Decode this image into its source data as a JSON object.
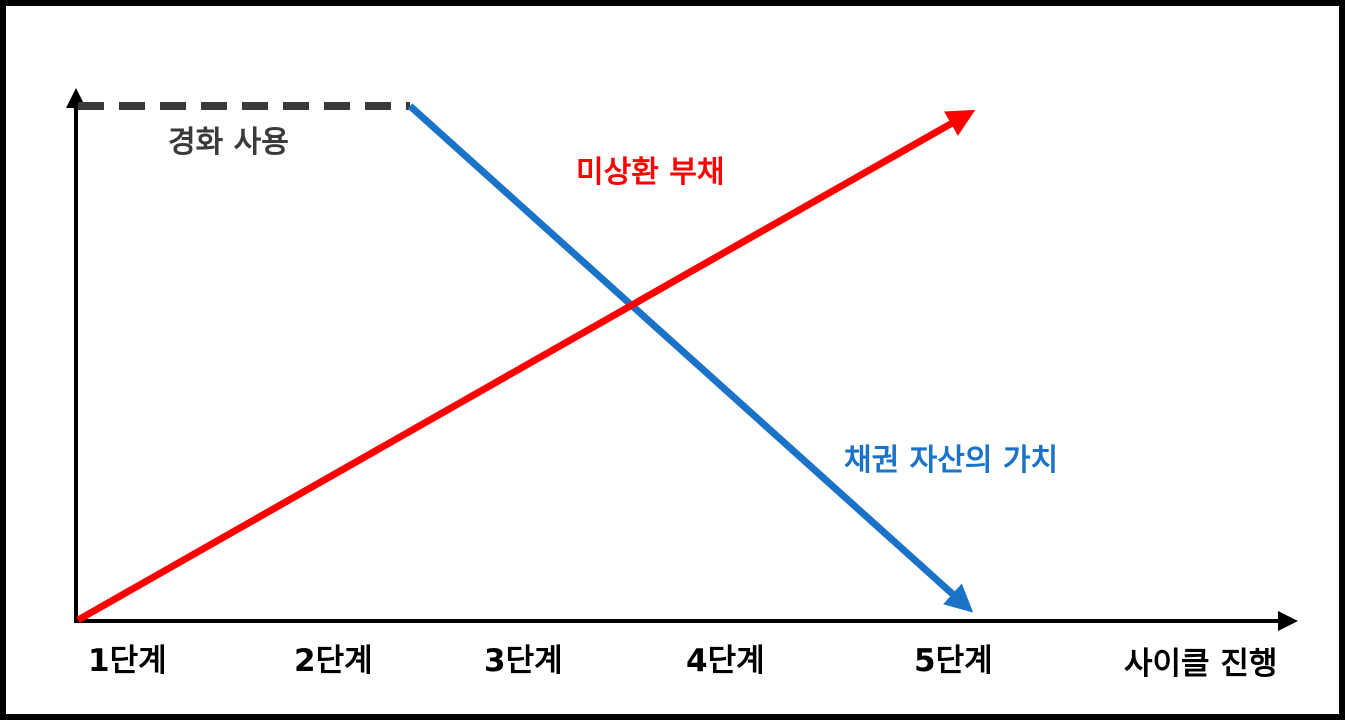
{
  "diagram": {
    "x_axis_label": "사이클 진행",
    "stages": [
      "1단계",
      "2단계",
      "3단계",
      "4단계",
      "5단계"
    ],
    "annotations": {
      "dashed_line": "경화 사용",
      "red_line": "미상환 부채",
      "blue_line": "채권 자산의 가치"
    },
    "colors": {
      "dashed_line": "#3a3a3a",
      "red_line": "#ff0000",
      "blue_line": "#1a73c6",
      "axes": "#000000"
    },
    "trends": {
      "red_line": "rising",
      "blue_line": "falling",
      "dashed_line": "flat"
    }
  }
}
